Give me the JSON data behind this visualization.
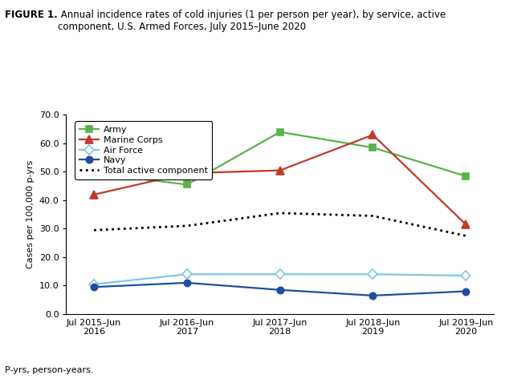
{
  "title_bold": "FIGURE 1.",
  "title_normal": " Annual incidence rates of cold injuries (1 per person per year), by service, active\ncomponent, U.S. Armed Forces, July 2015–June 2020",
  "ylabel": "Cases per 100,000 p-yrs",
  "footnote": "P-yrs, person-years.",
  "x_labels": [
    "Jul 2015–Jun\n2016",
    "Jul 2016–Jun\n2017",
    "Jul 2017–Jun\n2018",
    "Jul 2018–Jun\n2019",
    "Jul 2019–Jun\n2020"
  ],
  "x_positions": [
    0,
    1,
    2,
    3,
    4
  ],
  "ylim": [
    0,
    70.0
  ],
  "yticks": [
    0.0,
    10.0,
    20.0,
    30.0,
    40.0,
    50.0,
    60.0,
    70.0
  ],
  "series": {
    "Army": {
      "values": [
        49.5,
        45.5,
        64.0,
        58.5,
        48.5
      ],
      "color": "#5ab24a",
      "marker": "s",
      "marker_facecolor": "#5ab24a",
      "marker_edgecolor": "#5ab24a",
      "linewidth": 1.6,
      "linestyle": "-",
      "markersize": 6
    },
    "Marine Corps": {
      "values": [
        42.0,
        49.5,
        50.5,
        63.0,
        31.5
      ],
      "color": "#c0392b",
      "marker": "^",
      "marker_facecolor": "#c0392b",
      "marker_edgecolor": "#c0392b",
      "linewidth": 1.6,
      "linestyle": "-",
      "markersize": 7
    },
    "Air Force": {
      "values": [
        10.5,
        14.0,
        14.0,
        14.0,
        13.5
      ],
      "color": "#7ec8e3",
      "marker": "D",
      "marker_facecolor": "white",
      "marker_edgecolor": "#7ec8e3",
      "linewidth": 1.6,
      "linestyle": "-",
      "markersize": 6
    },
    "Navy": {
      "values": [
        9.5,
        11.0,
        8.5,
        6.5,
        8.0
      ],
      "color": "#1f4e9e",
      "marker": "o",
      "marker_facecolor": "#1f4e9e",
      "marker_edgecolor": "#1f4e9e",
      "linewidth": 1.6,
      "linestyle": "-",
      "markersize": 6
    },
    "Total active component": {
      "values": [
        29.5,
        31.0,
        35.5,
        34.5,
        27.5
      ],
      "color": "#000000",
      "marker": "None",
      "marker_facecolor": "none",
      "marker_edgecolor": "none",
      "linewidth": 2.0,
      "linestyle": ":",
      "markersize": 0
    }
  }
}
